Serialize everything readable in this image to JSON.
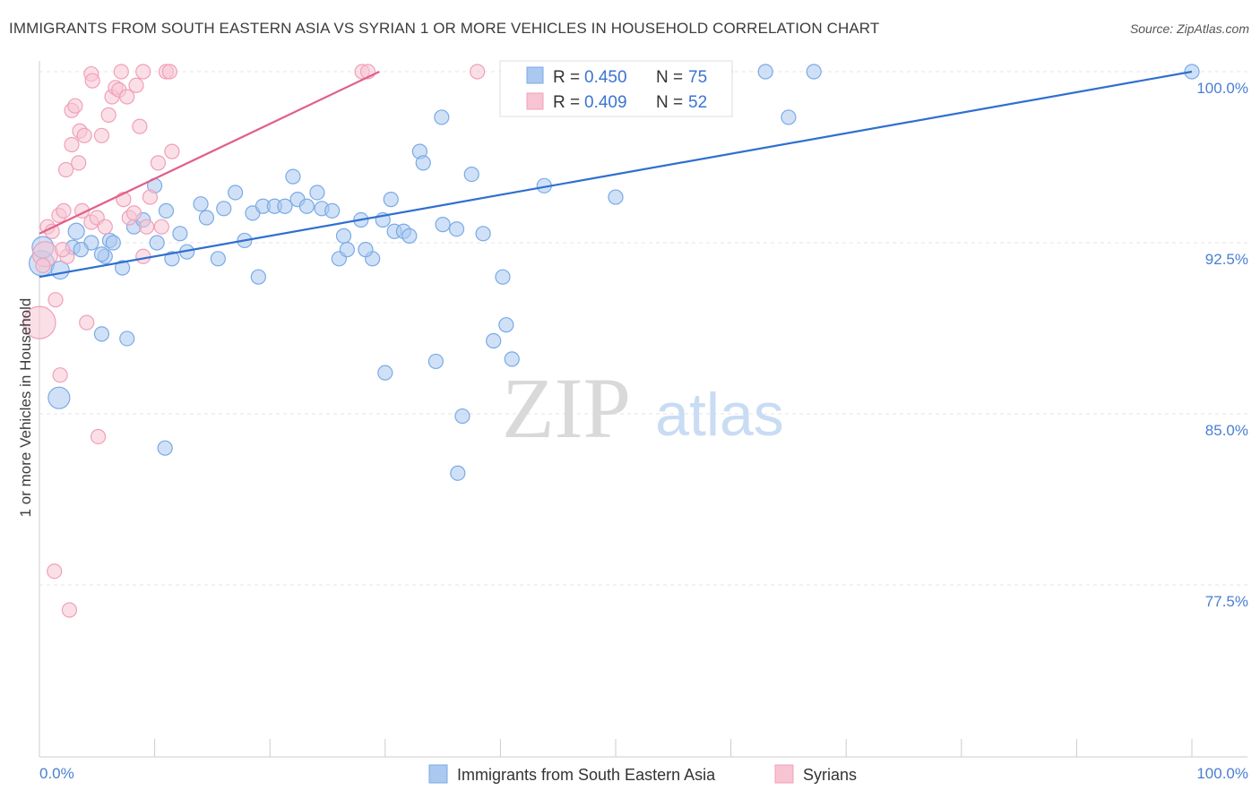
{
  "title": "IMMIGRANTS FROM SOUTH EASTERN ASIA VS SYRIAN 1 OR MORE VEHICLES IN HOUSEHOLD CORRELATION CHART",
  "source": "Source: ZipAtlas.com",
  "watermark": {
    "zip": "ZIP",
    "atlas": "atlas"
  },
  "chart_data": {
    "type": "scatter",
    "title": "IMMIGRANTS FROM SOUTH EASTERN ASIA VS SYRIAN 1 OR MORE VEHICLES IN HOUSEHOLD CORRELATION CHART",
    "xlabel": "",
    "ylabel": "1 or more Vehicles in Household",
    "xlim": [
      0,
      100
    ],
    "ylim": [
      70,
      101.5
    ],
    "y_ticks": [
      77.5,
      85.0,
      92.5,
      100.0
    ],
    "y_tick_labels": [
      "77.5%",
      "85.0%",
      "92.5%",
      "100.0%"
    ],
    "x_tick_labels": [
      "0.0%",
      "100.0%"
    ],
    "legend_position": "bottom-center",
    "stats": [
      {
        "r_label": "R =",
        "r": "0.450",
        "n_label": "N =",
        "n": "75"
      },
      {
        "r_label": "R =",
        "r": "0.409",
        "n_label": "N =",
        "n": "52"
      }
    ],
    "series": [
      {
        "name": "Immigrants from South Eastern Asia",
        "color": "#7aaae6",
        "fill": "#aac8f0",
        "line_color": "#2f6fcf",
        "trend": [
          [
            0,
            91.0
          ],
          [
            100,
            100.0
          ]
        ],
        "points": [
          [
            0.2,
            91.6,
            14
          ],
          [
            0.3,
            92.3,
            12
          ],
          [
            1.8,
            91.3,
            10
          ],
          [
            1.7,
            85.7,
            12
          ],
          [
            3.2,
            93.0,
            9
          ],
          [
            2.9,
            92.3,
            8
          ],
          [
            4.5,
            92.5,
            8
          ],
          [
            5.7,
            91.9,
            8
          ],
          [
            3.6,
            92.2,
            8
          ],
          [
            6.1,
            92.6,
            8
          ],
          [
            5.4,
            92.0,
            8
          ],
          [
            6.4,
            92.5,
            8
          ],
          [
            8.2,
            93.2,
            8
          ],
          [
            9.0,
            93.5,
            8
          ],
          [
            7.2,
            91.4,
            8
          ],
          [
            5.4,
            88.5,
            8
          ],
          [
            7.6,
            88.3,
            8
          ],
          [
            10.2,
            92.5,
            8
          ],
          [
            11.0,
            93.9,
            8
          ],
          [
            11.5,
            91.8,
            8
          ],
          [
            10.0,
            95.0,
            8
          ],
          [
            12.2,
            92.9,
            8
          ],
          [
            14.0,
            94.2,
            8
          ],
          [
            12.8,
            92.1,
            8
          ],
          [
            14.5,
            93.6,
            8
          ],
          [
            15.5,
            91.8,
            8
          ],
          [
            16.0,
            94.0,
            8
          ],
          [
            17.0,
            94.7,
            8
          ],
          [
            17.8,
            92.6,
            8
          ],
          [
            18.5,
            93.8,
            8
          ],
          [
            19.0,
            91.0,
            8
          ],
          [
            19.4,
            94.1,
            8
          ],
          [
            20.4,
            94.1,
            8
          ],
          [
            21.3,
            94.1,
            8
          ],
          [
            22.0,
            95.4,
            8
          ],
          [
            22.4,
            94.4,
            8
          ],
          [
            23.2,
            94.1,
            8
          ],
          [
            24.1,
            94.7,
            8
          ],
          [
            24.5,
            94.0,
            8
          ],
          [
            25.4,
            93.9,
            8
          ],
          [
            26.0,
            91.8,
            8
          ],
          [
            26.4,
            92.8,
            8
          ],
          [
            26.7,
            92.2,
            8
          ],
          [
            27.9,
            93.5,
            8
          ],
          [
            28.9,
            91.8,
            8
          ],
          [
            28.3,
            92.2,
            8
          ],
          [
            29.8,
            93.5,
            8
          ],
          [
            30.5,
            94.4,
            8
          ],
          [
            30.8,
            93.0,
            8
          ],
          [
            31.6,
            93.0,
            8
          ],
          [
            32.1,
            92.8,
            8
          ],
          [
            33.0,
            96.5,
            8
          ],
          [
            33.3,
            96.0,
            8
          ],
          [
            35.0,
            93.3,
            8
          ],
          [
            34.9,
            98.0,
            8
          ],
          [
            36.2,
            93.1,
            8
          ],
          [
            37.5,
            95.5,
            8
          ],
          [
            38.5,
            92.9,
            8
          ],
          [
            40.2,
            91.0,
            8
          ],
          [
            40.5,
            88.9,
            8
          ],
          [
            39.4,
            88.2,
            8
          ],
          [
            41.0,
            87.4,
            8
          ],
          [
            34.4,
            87.3,
            8
          ],
          [
            30.0,
            86.8,
            8
          ],
          [
            36.7,
            84.9,
            8
          ],
          [
            36.3,
            82.4,
            8
          ],
          [
            10.9,
            83.5,
            8
          ],
          [
            43.8,
            95.0,
            8
          ],
          [
            50.2,
            100.0,
            8
          ],
          [
            59.5,
            100.0,
            8
          ],
          [
            63.0,
            100.0,
            8
          ],
          [
            67.2,
            100.0,
            8
          ],
          [
            65.0,
            98.0,
            8
          ],
          [
            50.0,
            94.5,
            8
          ],
          [
            100.0,
            100.0,
            8
          ]
        ]
      },
      {
        "name": "Syrians",
        "color": "#f0a0b8",
        "fill": "#f7c4d3",
        "line_color": "#e0608a",
        "trend": [
          [
            0,
            92.9
          ],
          [
            29.5,
            100.0
          ]
        ],
        "points": [
          [
            0.0,
            89.0,
            18
          ],
          [
            0.5,
            92.0,
            14
          ],
          [
            0.7,
            93.2,
            8
          ],
          [
            1.1,
            93.0,
            8
          ],
          [
            1.4,
            90.0,
            8
          ],
          [
            1.7,
            93.7,
            8
          ],
          [
            1.8,
            86.7,
            8
          ],
          [
            2.1,
            93.9,
            8
          ],
          [
            2.3,
            95.7,
            8
          ],
          [
            2.4,
            91.9,
            8
          ],
          [
            2.8,
            96.8,
            8
          ],
          [
            2.8,
            98.3,
            8
          ],
          [
            3.1,
            98.5,
            8
          ],
          [
            3.4,
            96.0,
            8
          ],
          [
            3.5,
            97.4,
            8
          ],
          [
            3.7,
            93.9,
            8
          ],
          [
            3.9,
            97.2,
            8
          ],
          [
            4.1,
            89.0,
            8
          ],
          [
            4.5,
            99.9,
            8
          ],
          [
            4.5,
            93.4,
            8
          ],
          [
            4.6,
            99.6,
            8
          ],
          [
            5.0,
            93.6,
            8
          ],
          [
            5.4,
            97.2,
            8
          ],
          [
            5.1,
            84.0,
            8
          ],
          [
            5.7,
            93.2,
            8
          ],
          [
            6.0,
            98.1,
            8
          ],
          [
            6.3,
            98.9,
            8
          ],
          [
            6.6,
            99.3,
            8
          ],
          [
            6.9,
            99.2,
            8
          ],
          [
            7.1,
            100.0,
            8
          ],
          [
            7.3,
            94.4,
            8
          ],
          [
            7.6,
            98.9,
            8
          ],
          [
            7.8,
            93.6,
            8
          ],
          [
            8.2,
            93.8,
            8
          ],
          [
            8.4,
            99.4,
            8
          ],
          [
            8.7,
            97.6,
            8
          ],
          [
            9.0,
            91.9,
            8
          ],
          [
            9.0,
            100.0,
            8
          ],
          [
            9.3,
            93.2,
            8
          ],
          [
            9.6,
            94.5,
            8
          ],
          [
            10.3,
            96.0,
            8
          ],
          [
            10.6,
            93.2,
            8
          ],
          [
            11.0,
            100.0,
            8
          ],
          [
            11.3,
            100.0,
            8
          ],
          [
            11.5,
            96.5,
            8
          ],
          [
            28.0,
            100.0,
            8
          ],
          [
            28.5,
            100.0,
            8
          ],
          [
            38.0,
            100.0,
            8
          ],
          [
            1.3,
            78.1,
            8
          ],
          [
            2.6,
            76.4,
            8
          ],
          [
            0.3,
            91.5,
            8
          ],
          [
            2.0,
            92.2,
            8
          ]
        ]
      }
    ]
  }
}
